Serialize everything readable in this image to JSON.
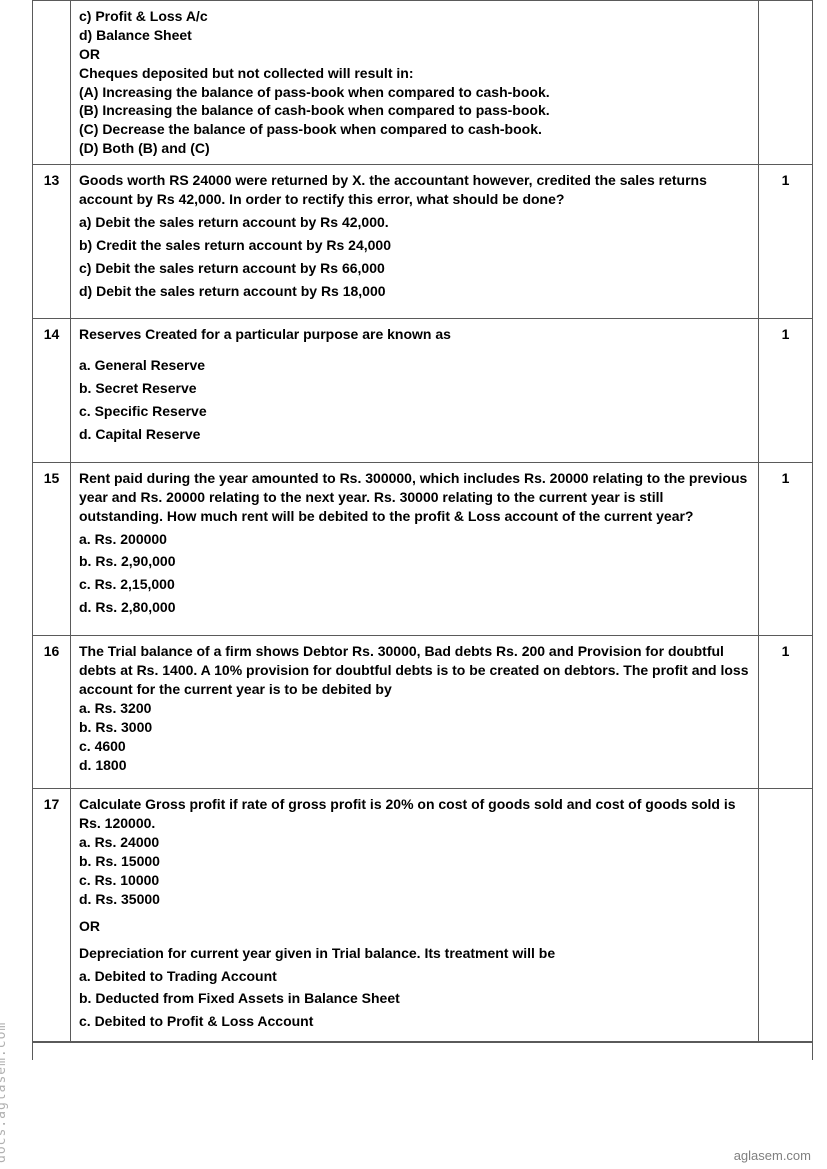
{
  "background_color": "#ffffff",
  "text_color": "#000000",
  "border_color": "#5a5a5a",
  "font_family": "Segoe UI, Tahoma, Arial, sans-serif",
  "font_size_pt": 11,
  "watermark_left": "docs.aglasem.com",
  "watermark_right": "aglasem.com",
  "rows": [
    {
      "num": "",
      "mark": "",
      "lines": [
        "c) Profit & Loss A/c",
        "d) Balance Sheet",
        "OR",
        "Cheques deposited but not collected will result in:",
        "(A) Increasing the balance of pass-book when compared to cash-book.",
        "(B) Increasing the balance of cash-book when compared to pass-book.",
        "(C) Decrease the balance of pass-book when compared to cash-book.",
        "(D) Both (B) and (C)"
      ]
    },
    {
      "num": "13",
      "mark": "1",
      "question": "Goods worth RS 24000 were returned by X. the accountant however, credited the sales returns account by Rs 42,000. In order to rectify this error, what should be done?",
      "options": [
        "a) Debit the sales return account by Rs 42,000.",
        "b) Credit the sales return account by Rs 24,000",
        "c) Debit the sales return account by Rs 66,000",
        "d) Debit the sales return account by Rs 18,000"
      ]
    },
    {
      "num": "14",
      "mark": "1",
      "question": "Reserves Created for a particular purpose are known as",
      "options": [
        "a. General Reserve",
        "b. Secret Reserve",
        "c. Specific Reserve",
        "d. Capital Reserve"
      ]
    },
    {
      "num": "15",
      "mark": "1",
      "question": "Rent paid during the year amounted to Rs. 300000, which includes Rs. 20000 relating to the previous year and Rs. 20000 relating to the next year. Rs. 30000 relating to the current year is still outstanding. How much rent will be debited to the profit & Loss account of the current year?",
      "options": [
        "a. Rs. 200000",
        "b. Rs. 2,90,000",
        "c. Rs. 2,15,000",
        "d. Rs. 2,80,000"
      ]
    },
    {
      "num": "16",
      "mark": "1",
      "question": "The Trial balance of a firm shows Debtor Rs. 30000, Bad debts Rs. 200 and Provision for doubtful debts at Rs. 1400. A 10% provision for doubtful debts is to be created on debtors. The profit and loss account for the current year is to be debited by",
      "options_tight": [
        "a. Rs. 3200",
        "b. Rs. 3000",
        "c. 4600",
        "d. 1800"
      ]
    },
    {
      "num": "17",
      "mark": "",
      "question": "Calculate Gross profit if rate of gross profit is 20% on cost of goods sold and cost of goods sold is Rs. 120000.",
      "options_tight": [
        "a. Rs. 24000",
        "b. Rs. 15000",
        "c. Rs. 10000",
        "d. Rs. 35000"
      ],
      "or": "OR",
      "question2": "Depreciation for current year given in Trial balance. Its treatment will be",
      "options2": [
        "a. Debited to Trading Account",
        "b. Deducted from Fixed Assets in Balance Sheet",
        "c. Debited to Profit & Loss Account"
      ]
    }
  ]
}
